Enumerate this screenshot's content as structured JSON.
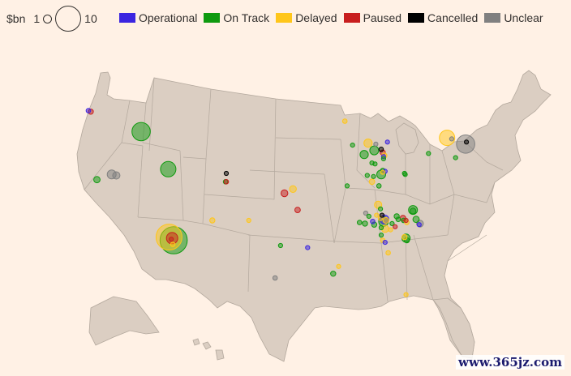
{
  "legend": {
    "size_unit": "$bn",
    "size_min_label": "1",
    "size_max_label": "10",
    "statuses": [
      {
        "key": "operational",
        "label": "Operational",
        "color": "#3b25e0"
      },
      {
        "key": "on_track",
        "label": "On Track",
        "color": "#0f9a0f"
      },
      {
        "key": "delayed",
        "label": "Delayed",
        "color": "#ffc61a"
      },
      {
        "key": "paused",
        "label": "Paused",
        "color": "#c81e1e"
      },
      {
        "key": "cancelled",
        "label": "Cancelled",
        "color": "#000000"
      },
      {
        "key": "unclear",
        "label": "Unclear",
        "color": "#808080"
      }
    ]
  },
  "colors": {
    "background": "#fff1e5",
    "land": "#dbcec2",
    "state_border": "#b3a89d"
  },
  "chart_data": {
    "type": "scatter",
    "map": "United States (contiguous)",
    "size_encoding": "investment $bn",
    "points": [
      {
        "lon": -122.6,
        "lat": 45.6,
        "status": "operational",
        "value": 0.3
      },
      {
        "lon": -122.3,
        "lat": 45.5,
        "status": "paused",
        "value": 0.4
      },
      {
        "lon": -115.8,
        "lat": 43.6,
        "status": "on_track",
        "value": 5
      },
      {
        "lon": -121.5,
        "lat": 39.0,
        "status": "on_track",
        "value": 0.6
      },
      {
        "lon": -119.6,
        "lat": 39.5,
        "status": "unclear",
        "value": 1.2
      },
      {
        "lon": -119.0,
        "lat": 39.4,
        "status": "unclear",
        "value": 0.8
      },
      {
        "lon": -112.3,
        "lat": 40.0,
        "status": "on_track",
        "value": 3.5
      },
      {
        "lon": -112.2,
        "lat": 33.5,
        "status": "delayed",
        "value": 10
      },
      {
        "lon": -111.6,
        "lat": 33.2,
        "status": "on_track",
        "value": 11
      },
      {
        "lon": -111.8,
        "lat": 33.4,
        "status": "paused",
        "value": 1.9
      },
      {
        "lon": -111.9,
        "lat": 33.3,
        "status": "paused",
        "value": 0.1
      },
      {
        "lon": -111.7,
        "lat": 32.8,
        "status": "delayed",
        "value": 0.3
      },
      {
        "lon": -104.9,
        "lat": 38.8,
        "status": "on_track",
        "value": 0.3
      },
      {
        "lon": -104.8,
        "lat": 38.8,
        "status": "paused",
        "value": 0.3
      },
      {
        "lon": -104.8,
        "lat": 39.6,
        "status": "cancelled",
        "value": 0.15
      },
      {
        "lon": -106.6,
        "lat": 35.1,
        "status": "delayed",
        "value": 0.4
      },
      {
        "lon": -101.9,
        "lat": 35.1,
        "status": "delayed",
        "value": 0.2
      },
      {
        "lon": -97.3,
        "lat": 37.7,
        "status": "paused",
        "value": 0.7
      },
      {
        "lon": -96.2,
        "lat": 38.1,
        "status": "delayed",
        "value": 0.7
      },
      {
        "lon": -95.6,
        "lat": 36.1,
        "status": "paused",
        "value": 0.45
      },
      {
        "lon": -97.8,
        "lat": 32.7,
        "status": "on_track",
        "value": 0.2
      },
      {
        "lon": -94.3,
        "lat": 32.5,
        "status": "operational",
        "value": 0.15
      },
      {
        "lon": -98.5,
        "lat": 29.6,
        "status": "unclear",
        "value": 0.3
      },
      {
        "lon": -91.0,
        "lat": 30.0,
        "status": "on_track",
        "value": 0.4
      },
      {
        "lon": -90.3,
        "lat": 30.7,
        "status": "delayed",
        "value": 0.25
      },
      {
        "lon": -89.5,
        "lat": 44.6,
        "status": "delayed",
        "value": 0.3
      },
      {
        "lon": -88.5,
        "lat": 42.3,
        "status": "on_track",
        "value": 0.2
      },
      {
        "lon": -86.5,
        "lat": 42.5,
        "status": "delayed",
        "value": 1
      },
      {
        "lon": -85.5,
        "lat": 42.4,
        "status": "unclear",
        "value": 0.2
      },
      {
        "lon": -84.0,
        "lat": 42.6,
        "status": "operational",
        "value": 0.2
      },
      {
        "lon": -87.0,
        "lat": 41.4,
        "status": "on_track",
        "value": 1
      },
      {
        "lon": -85.7,
        "lat": 41.8,
        "status": "on_track",
        "value": 1.2
      },
      {
        "lon": -84.8,
        "lat": 41.9,
        "status": "cancelled",
        "value": 0.3
      },
      {
        "lon": -84.6,
        "lat": 41.6,
        "status": "paused",
        "value": 0.4
      },
      {
        "lon": -84.4,
        "lat": 41.3,
        "status": "delayed",
        "value": 0.4
      },
      {
        "lon": -84.5,
        "lat": 41.2,
        "status": "operational",
        "value": 0.2
      },
      {
        "lon": -84.5,
        "lat": 41.0,
        "status": "on_track",
        "value": 0.15
      },
      {
        "lon": -86.0,
        "lat": 40.6,
        "status": "on_track",
        "value": 0.2
      },
      {
        "lon": -85.6,
        "lat": 40.5,
        "status": "on_track",
        "value": 0.2
      },
      {
        "lon": -84.6,
        "lat": 39.9,
        "status": "on_track",
        "value": 0.25
      },
      {
        "lon": -84.3,
        "lat": 39.8,
        "status": "operational",
        "value": 0.2
      },
      {
        "lon": -84.6,
        "lat": 39.7,
        "status": "delayed",
        "value": 0.2
      },
      {
        "lon": -84.8,
        "lat": 39.5,
        "status": "on_track",
        "value": 1.2
      },
      {
        "lon": -86.6,
        "lat": 39.4,
        "status": "on_track",
        "value": 0.2
      },
      {
        "lon": -85.8,
        "lat": 39.3,
        "status": "on_track",
        "value": 0.2
      },
      {
        "lon": -86.0,
        "lat": 38.8,
        "status": "delayed",
        "value": 0.45
      },
      {
        "lon": -85.1,
        "lat": 38.4,
        "status": "on_track",
        "value": 0.3
      },
      {
        "lon": -89.2,
        "lat": 38.4,
        "status": "on_track",
        "value": 0.2
      },
      {
        "lon": -81.8,
        "lat": 39.6,
        "status": "on_track",
        "value": 0.2
      },
      {
        "lon": -81.7,
        "lat": 39.5,
        "status": "on_track",
        "value": 0.25
      },
      {
        "lon": -78.7,
        "lat": 41.5,
        "status": "on_track",
        "value": 0.15
      },
      {
        "lon": -76.3,
        "lat": 43.0,
        "status": "delayed",
        "value": 3.5
      },
      {
        "lon": -75.7,
        "lat": 42.9,
        "status": "unclear",
        "value": 0.2
      },
      {
        "lon": -73.9,
        "lat": 42.4,
        "status": "unclear",
        "value": 5
      },
      {
        "lon": -73.8,
        "lat": 42.6,
        "status": "cancelled",
        "value": 0.2
      },
      {
        "lon": -75.2,
        "lat": 41.1,
        "status": "on_track",
        "value": 0.15
      },
      {
        "lon": -85.2,
        "lat": 36.6,
        "status": "delayed",
        "value": 0.8
      },
      {
        "lon": -84.9,
        "lat": 36.2,
        "status": "on_track",
        "value": 0.2
      },
      {
        "lon": -86.8,
        "lat": 35.8,
        "status": "unclear",
        "value": 0.2
      },
      {
        "lon": -86.4,
        "lat": 35.5,
        "status": "on_track",
        "value": 0.2
      },
      {
        "lon": -87.6,
        "lat": 34.9,
        "status": "on_track",
        "value": 0.3
      },
      {
        "lon": -86.9,
        "lat": 34.8,
        "status": "on_track",
        "value": 0.4
      },
      {
        "lon": -85.9,
        "lat": 35.0,
        "status": "operational",
        "value": 0.3
      },
      {
        "lon": -85.7,
        "lat": 34.7,
        "status": "on_track",
        "value": 0.4
      },
      {
        "lon": -85.4,
        "lat": 35.6,
        "status": "delayed",
        "value": 0.2
      },
      {
        "lon": -84.7,
        "lat": 35.6,
        "status": "cancelled",
        "value": 0.2
      },
      {
        "lon": -84.9,
        "lat": 35.3,
        "status": "delayed",
        "value": 0.3
      },
      {
        "lon": -84.4,
        "lat": 35.2,
        "status": "operational",
        "value": 1.2
      },
      {
        "lon": -84.5,
        "lat": 35.0,
        "status": "on_track",
        "value": 1.4
      },
      {
        "lon": -84.2,
        "lat": 35.1,
        "status": "delayed",
        "value": 0.5
      },
      {
        "lon": -84.8,
        "lat": 34.4,
        "status": "on_track",
        "value": 0.2
      },
      {
        "lon": -84.3,
        "lat": 34.3,
        "status": "delayed",
        "value": 0.8
      },
      {
        "lon": -83.6,
        "lat": 34.2,
        "status": "delayed",
        "value": 0.2
      },
      {
        "lon": -83.4,
        "lat": 34.8,
        "status": "on_track",
        "value": 0.2
      },
      {
        "lon": -82.8,
        "lat": 35.5,
        "status": "on_track",
        "value": 0.4
      },
      {
        "lon": -82.6,
        "lat": 35.2,
        "status": "on_track",
        "value": 0.3
      },
      {
        "lon": -82.0,
        "lat": 35.3,
        "status": "paused",
        "value": 0.5
      },
      {
        "lon": -81.9,
        "lat": 35.1,
        "status": "on_track",
        "value": 0.3
      },
      {
        "lon": -81.6,
        "lat": 35.1,
        "status": "paused",
        "value": 0.2
      },
      {
        "lon": -81.5,
        "lat": 34.9,
        "status": "delayed",
        "value": 0.3
      },
      {
        "lon": -80.7,
        "lat": 36.1,
        "status": "on_track",
        "value": 1.2
      },
      {
        "lon": -80.7,
        "lat": 36.0,
        "status": "on_track",
        "value": 0.5
      },
      {
        "lon": -80.3,
        "lat": 35.2,
        "status": "on_track",
        "value": 0.6
      },
      {
        "lon": -79.8,
        "lat": 34.8,
        "status": "unclear",
        "value": 0.7
      },
      {
        "lon": -79.9,
        "lat": 34.7,
        "status": "operational",
        "value": 0.2
      },
      {
        "lon": -83.0,
        "lat": 34.5,
        "status": "paused",
        "value": 0.15
      },
      {
        "lon": -84.8,
        "lat": 33.7,
        "status": "on_track",
        "value": 0.2
      },
      {
        "lon": -84.6,
        "lat": 33.2,
        "status": "delayed",
        "value": 0.3
      },
      {
        "lon": -84.3,
        "lat": 33.0,
        "status": "operational",
        "value": 0.2
      },
      {
        "lon": -81.6,
        "lat": 33.4,
        "status": "on_track",
        "value": 1.0
      },
      {
        "lon": -81.5,
        "lat": 33.2,
        "status": "on_track",
        "value": 0.4
      },
      {
        "lon": -81.8,
        "lat": 33.5,
        "status": "delayed",
        "value": 0.4
      },
      {
        "lon": -83.9,
        "lat": 32.0,
        "status": "delayed",
        "value": 0.3
      },
      {
        "lon": -81.6,
        "lat": 28.0,
        "status": "delayed",
        "value": 0.2
      }
    ]
  }
}
